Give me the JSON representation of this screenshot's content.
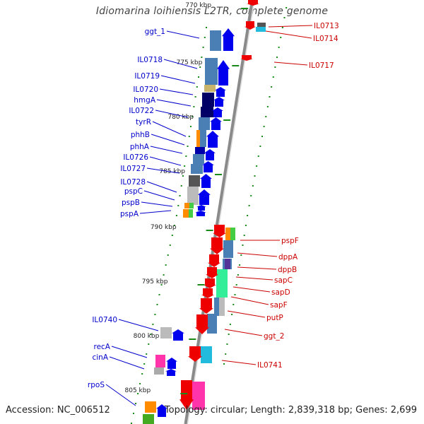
{
  "title": "Idiomarina loihiensis L2TR, complete genome",
  "accession": "Accession: NC_006512",
  "summary": "Topology: circular; Length: 2,839,318 bp; Genes: 2,699",
  "colors": {
    "plus_strand_arrow": "#0000ee",
    "minus_strand_arrow": "#ee0000",
    "left_label": "#0000cc",
    "right_label": "#cc0000",
    "backbone": "#8a8a8a",
    "tick_dots": "#1a8a1a"
  },
  "kbp_ticks": [
    "770 kbp",
    "775 kbp",
    "780 kbp",
    "785 kbp",
    "790 kbp",
    "795 kbp",
    "800 kbp",
    "805 kbp"
  ],
  "left_labels": [
    "ggt_1",
    "IL0718",
    "IL0719",
    "IL0720",
    "hmgA",
    "IL0722",
    "tyrR",
    "phhB",
    "phhA",
    "IL0726",
    "IL0727",
    "IL0728",
    "pspC",
    "pspB",
    "pspA",
    "IL0740",
    "recA",
    "cinA",
    "rpoS"
  ],
  "right_labels": [
    "IL0713",
    "IL0714",
    "IL0717",
    "pspF",
    "dppA",
    "dppB",
    "sapC",
    "sapD",
    "sapF",
    "putP",
    "ggt_2",
    "IL0741"
  ]
}
